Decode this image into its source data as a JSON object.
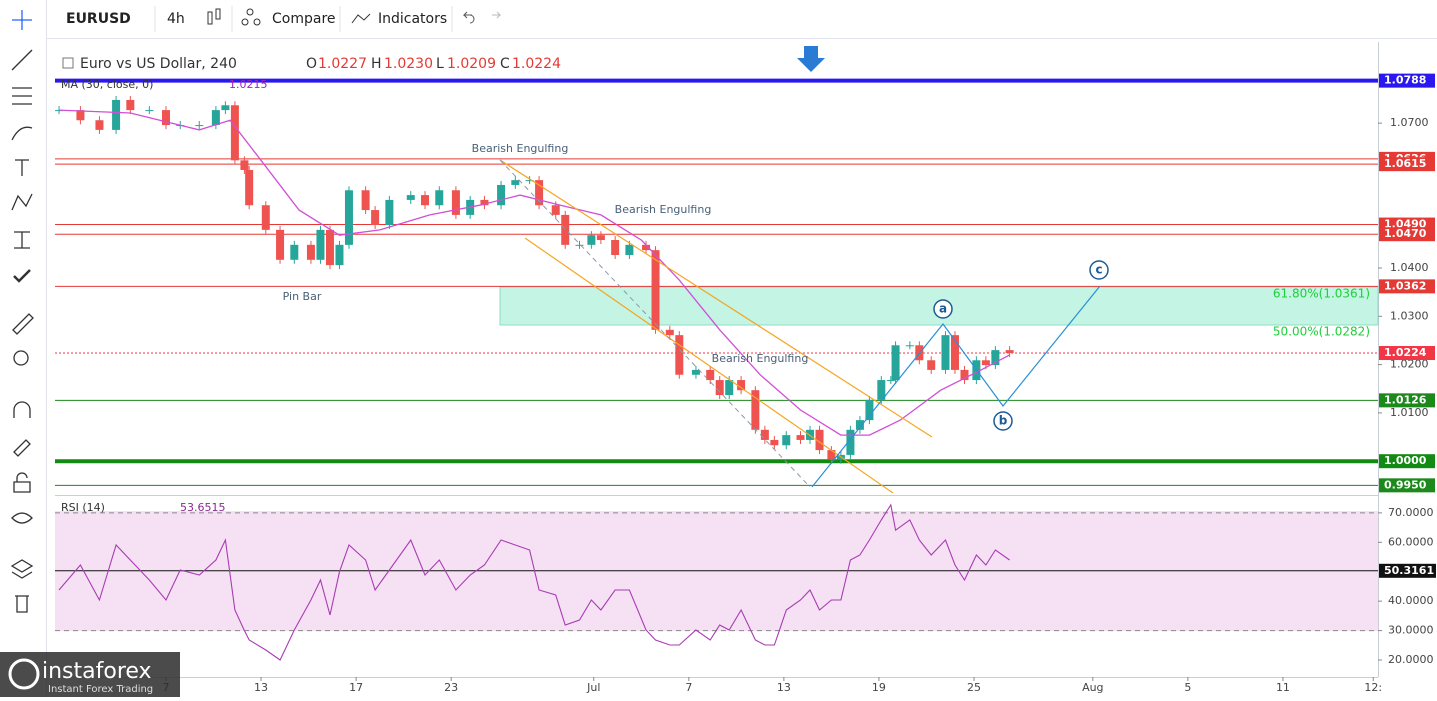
{
  "toolbar": {
    "symbol": "EURUSD",
    "interval": "4h",
    "compare": "Compare",
    "indicators": "Indicators"
  },
  "legend": {
    "title": "Euro vs US Dollar, 240",
    "o": "O",
    "o_value": "1.0227",
    "h": "H",
    "h_value": "1.0230",
    "l": "L",
    "l_value": "1.0209",
    "c": "C",
    "c_value": "1.0224",
    "ma": "MA (30, close, 0)",
    "ma_value": "1.0215",
    "rsi": "RSI (14)",
    "rsi_value": "53.6515"
  },
  "watermark": {
    "brand": "instaforex",
    "tagline": "Instant Forex Trading"
  },
  "chart_data": {
    "type": "candlestick",
    "xlim": [
      -8.67,
      47.0
    ],
    "xticks": [
      {
        "value": -4,
        "label": "7"
      },
      {
        "value": 0,
        "label": "13"
      },
      {
        "value": 4,
        "label": "17"
      },
      {
        "value": 8,
        "label": "23"
      },
      {
        "value": 14,
        "label": "Jul"
      },
      {
        "value": 18,
        "label": "7"
      },
      {
        "value": 22,
        "label": "13"
      },
      {
        "value": 26,
        "label": "19"
      },
      {
        "value": 30,
        "label": "25"
      },
      {
        "value": 35,
        "label": "Aug"
      },
      {
        "value": 39,
        "label": "5"
      },
      {
        "value": 43,
        "label": "11"
      },
      {
        "value": 46.8,
        "label": "12:"
      }
    ],
    "ylim": [
      0.993,
      1.0868
    ],
    "yticks": [
      {
        "value": 1.07,
        "label": "1.0700"
      },
      {
        "value": 1.04,
        "label": "1.0400"
      },
      {
        "value": 1.03,
        "label": "1.0300"
      },
      {
        "value": 1.02,
        "label": "1.0200"
      },
      {
        "value": 1.01,
        "label": "1.0100"
      }
    ],
    "x": [
      -8.5,
      -7.6,
      -6.8,
      -6.1,
      -5.5,
      -4.7,
      -4.0,
      -3.4,
      -2.6,
      -1.9,
      -1.5,
      -1.1,
      -0.7,
      -0.5,
      0.2,
      0.8,
      1.4,
      2.1,
      2.5,
      2.9,
      3.3,
      3.7,
      4.4,
      4.8,
      5.4,
      6.3,
      6.9,
      7.5,
      8.2,
      8.8,
      9.4,
      10.1,
      10.7,
      11.3,
      11.7,
      12.4,
      12.8,
      13.4,
      13.9,
      14.3,
      14.9,
      15.5,
      16.2,
      16.6,
      17.2,
      17.6,
      18.3,
      18.9,
      19.3,
      19.7,
      20.2,
      20.8,
      21.2,
      21.6,
      22.1,
      22.7,
      23.1,
      23.5,
      24.0,
      24.4,
      24.8,
      25.2,
      25.6,
      26.1,
      26.5,
      26.7,
      27.3,
      27.7,
      28.2,
      28.8,
      29.2,
      29.6,
      30.1,
      30.5,
      30.9,
      31.5
    ],
    "series": [
      {
        "name": "EURUSD",
        "up_color": "#26a69a",
        "down_color": "#ef5350",
        "values": [
          1.0727,
          1.0706,
          1.0686,
          1.0748,
          1.0727,
          1.0727,
          1.0696,
          1.0696,
          1.0696,
          1.0727,
          1.0737,
          1.0623,
          1.0603,
          1.053,
          1.0479,
          1.0417,
          1.0448,
          1.0417,
          1.0479,
          1.0406,
          1.0448,
          1.0561,
          1.052,
          1.0489,
          1.0541,
          1.0551,
          1.053,
          1.0561,
          1.051,
          1.0541,
          1.053,
          1.0572,
          1.0582,
          1.0582,
          1.053,
          1.051,
          1.0448,
          1.0448,
          1.0468,
          1.0458,
          1.0427,
          1.0448,
          1.0437,
          1.0272,
          1.0261,
          1.0179,
          1.0189,
          1.0168,
          1.0137,
          1.0168,
          1.0147,
          1.0065,
          1.0044,
          1.0033,
          1.0054,
          1.0044,
          1.0065,
          1.0023,
          1.0003,
          1.0013,
          1.0065,
          1.0085,
          1.0127,
          1.0168,
          1.0168,
          1.024,
          1.024,
          1.0209,
          1.0189,
          1.0261,
          1.0189,
          1.0168,
          1.0209,
          1.0199,
          1.023,
          1.0224
        ]
      },
      {
        "name": "RSI",
        "color": "#a83cb3",
        "values": [
          43.8,
          52.3,
          40.4,
          59.1,
          54.0,
          47.2,
          40.4,
          50.6,
          48.9,
          54.0,
          60.8,
          37.0,
          30.0,
          26.8,
          23.4,
          20.0,
          30.2,
          40.4,
          47.2,
          35.3,
          50.0,
          59.1,
          54.0,
          43.8,
          50.6,
          60.8,
          48.9,
          54.0,
          43.8,
          48.9,
          52.3,
          60.8,
          59.1,
          57.4,
          43.8,
          42.1,
          31.9,
          33.6,
          40.4,
          37.0,
          43.8,
          43.8,
          30.2,
          26.8,
          25.1,
          25.1,
          30.2,
          26.8,
          31.9,
          30.2,
          37.0,
          26.8,
          25.1,
          25.1,
          37.0,
          40.4,
          43.8,
          37.0,
          40.4,
          40.4,
          54.0,
          55.7,
          60.8,
          67.6,
          72.7,
          64.1,
          67.6,
          60.8,
          55.7,
          60.8,
          52.3,
          47.2,
          55.7,
          52.3,
          57.4,
          54.0
        ]
      }
    ],
    "ma": {
      "color": "#d04fd6",
      "x": [
        -8.5,
        -5.5,
        -2.6,
        -1.3,
        0,
        1.6,
        3.3,
        5.0,
        7.1,
        9.2,
        10.9,
        12.6,
        14.3,
        16.0,
        17.6,
        19.3,
        21.0,
        22.7,
        24.4,
        25.6,
        26.9,
        28.6,
        30.3,
        31.5
      ],
      "values": [
        1.0727,
        1.0721,
        1.0686,
        1.0706,
        1.0623,
        1.052,
        1.0468,
        1.0479,
        1.051,
        1.053,
        1.0551,
        1.053,
        1.051,
        1.0458,
        1.0375,
        1.0272,
        1.0179,
        1.0106,
        1.0054,
        1.0054,
        1.0085,
        1.0147,
        1.0189,
        1.022
      ]
    },
    "rsi_ylim": [
      14.9,
      75.4
    ],
    "rsi_yticks": [
      {
        "value": 70,
        "label": "70.0000"
      },
      {
        "value": 60,
        "label": "60.0000"
      },
      {
        "value": 40,
        "label": "40.0000"
      },
      {
        "value": 30,
        "label": "30.0000"
      },
      {
        "value": 20,
        "label": "20.0000"
      }
    ],
    "rsi_bands": [
      70,
      30
    ],
    "rsi_marker": {
      "value": 50.3161,
      "label": "50.3161"
    },
    "levels": [
      {
        "value": 1.0788,
        "color": "#2b17f0",
        "line": "thick"
      },
      {
        "value": 1.0626,
        "color": "#e53935",
        "line": "thin"
      },
      {
        "value": 1.0615,
        "color": "#e53935",
        "line": "thin"
      },
      {
        "value": 1.049,
        "label": "1.0490",
        "color": "#e53935",
        "line": "thin"
      },
      {
        "value": 1.047,
        "label": "1.0470",
        "color": "#e53935",
        "line": "thin"
      },
      {
        "value": 1.0362,
        "color": "#e53935",
        "line": "thin"
      },
      {
        "value": 1.0224,
        "color": "#f23645",
        "line": "dotted"
      },
      {
        "value": 1.0126,
        "color": "#1b8a1b",
        "line": "thin"
      },
      {
        "value": 1,
        "label": "1.0000",
        "color": "#138a13",
        "line": "thick"
      },
      {
        "value": 0.995,
        "label": "0.9950",
        "color": "#1b8a1b",
        "line": "thin"
      }
    ],
    "fib_zone": {
      "color": "#b9f3e0",
      "text_color": "#1fcf3b",
      "levels": [
        {
          "value": 1.0361,
          "label": "61.80%(1.0361)"
        },
        {
          "value": 1.0282,
          "label": "50.00%(1.0282)"
        }
      ]
    },
    "annotations": [
      "Bearish Engulfing",
      "Bearish Engulfing",
      "Pin Bar",
      "Bearish Engulfing"
    ],
    "waves": [
      "a",
      "b",
      "c"
    ]
  }
}
